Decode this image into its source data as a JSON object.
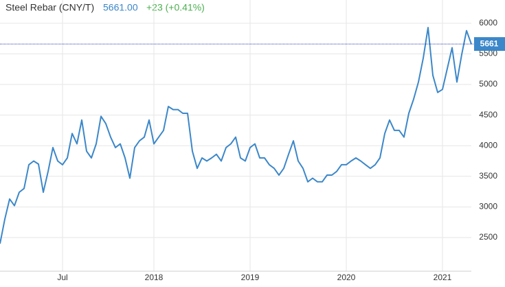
{
  "chart_data": {
    "type": "line",
    "title": "Steel Rebar (CNY/T)",
    "price": "5661.00",
    "change": "+23 (+0.41%)",
    "categories": [
      null,
      null,
      null,
      null,
      null,
      null,
      null,
      null,
      null,
      null,
      null,
      null,
      null,
      "Jul",
      null,
      null,
      null,
      null,
      null,
      null,
      null,
      null,
      null,
      null,
      null,
      null,
      null,
      null,
      null,
      null,
      null,
      null,
      "2018",
      null,
      null,
      null,
      null,
      null,
      null,
      null,
      null,
      null,
      null,
      null,
      null,
      null,
      null,
      null,
      null,
      null,
      null,
      null,
      "2019",
      null,
      null,
      null,
      null,
      null,
      null,
      null,
      null,
      null,
      null,
      null,
      null,
      null,
      null,
      null,
      null,
      null,
      null,
      null,
      "2020",
      null,
      null,
      null,
      null,
      null,
      null,
      null,
      null,
      null,
      null,
      null,
      null,
      null,
      null,
      null,
      null,
      null,
      null,
      null,
      "2021",
      null,
      null,
      null,
      null,
      null,
      null
    ],
    "series": [
      {
        "name": "Steel Rebar",
        "color": "#3b87c9",
        "values": [
          2400,
          2800,
          3130,
          3020,
          3240,
          3300,
          3690,
          3750,
          3700,
          3240,
          3580,
          3970,
          3750,
          3690,
          3800,
          4200,
          4030,
          4420,
          3910,
          3800,
          4030,
          4480,
          4360,
          4140,
          3970,
          4030,
          3800,
          3470,
          3970,
          4080,
          4140,
          4420,
          4030,
          4140,
          4250,
          4640,
          4590,
          4590,
          4530,
          4530,
          3910,
          3630,
          3800,
          3750,
          3800,
          3860,
          3750,
          3970,
          4030,
          4140,
          3800,
          3750,
          3970,
          4030,
          3800,
          3800,
          3690,
          3630,
          3520,
          3630,
          3860,
          4080,
          3750,
          3630,
          3410,
          3470,
          3410,
          3410,
          3520,
          3520,
          3580,
          3690,
          3690,
          3750,
          3800,
          3750,
          3690,
          3630,
          3690,
          3800,
          4200,
          4420,
          4250,
          4250,
          4140,
          4530,
          4760,
          5040,
          5430,
          5930,
          5150,
          4870,
          4920,
          5260,
          5600,
          5040,
          5490,
          5880,
          5661
        ]
      }
    ],
    "ylim": [
      1950,
      6380
    ],
    "yticks": [
      2500,
      3000,
      3500,
      4000,
      4500,
      5000,
      5500,
      6000
    ],
    "grid": true
  }
}
